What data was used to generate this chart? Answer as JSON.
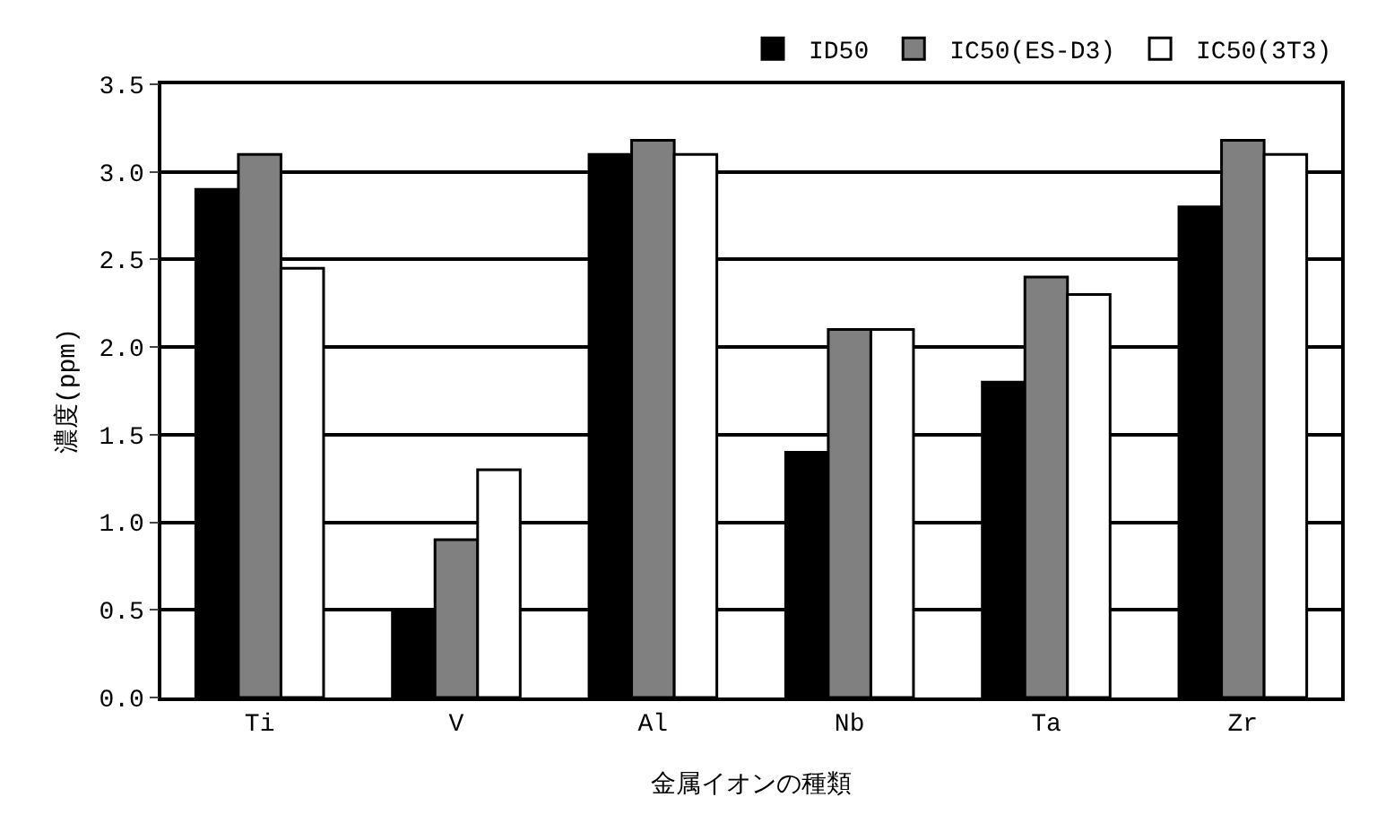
{
  "chart_data": {
    "type": "bar",
    "xlabel": "金属イオンの種類",
    "ylabel": "濃度(ppm)",
    "categories": [
      "Ti",
      "V",
      "Al",
      "Nb",
      "Ta",
      "Zr"
    ],
    "series": [
      {
        "name": "ID50",
        "color": "#000000",
        "values": [
          2.9,
          0.5,
          3.1,
          1.4,
          1.8,
          2.8
        ]
      },
      {
        "name": "IC50(ES-D3)",
        "color": "#808080",
        "values": [
          3.1,
          0.9,
          3.18,
          2.1,
          2.4,
          3.18
        ]
      },
      {
        "name": "IC50(3T3)",
        "color": "#ffffff",
        "values": [
          2.45,
          1.3,
          3.1,
          2.1,
          2.3,
          3.1
        ]
      }
    ],
    "ylim": [
      0,
      3.5
    ],
    "yticks": [
      {
        "value": 0,
        "label": "0.0"
      },
      0.5,
      {
        "value": 1,
        "label": "1.0"
      },
      1.5,
      {
        "value": 2,
        "label": "2.0"
      },
      2.5,
      {
        "value": 3,
        "label": "3.0"
      },
      3.5
    ],
    "grid": "y",
    "legend": "top right"
  }
}
